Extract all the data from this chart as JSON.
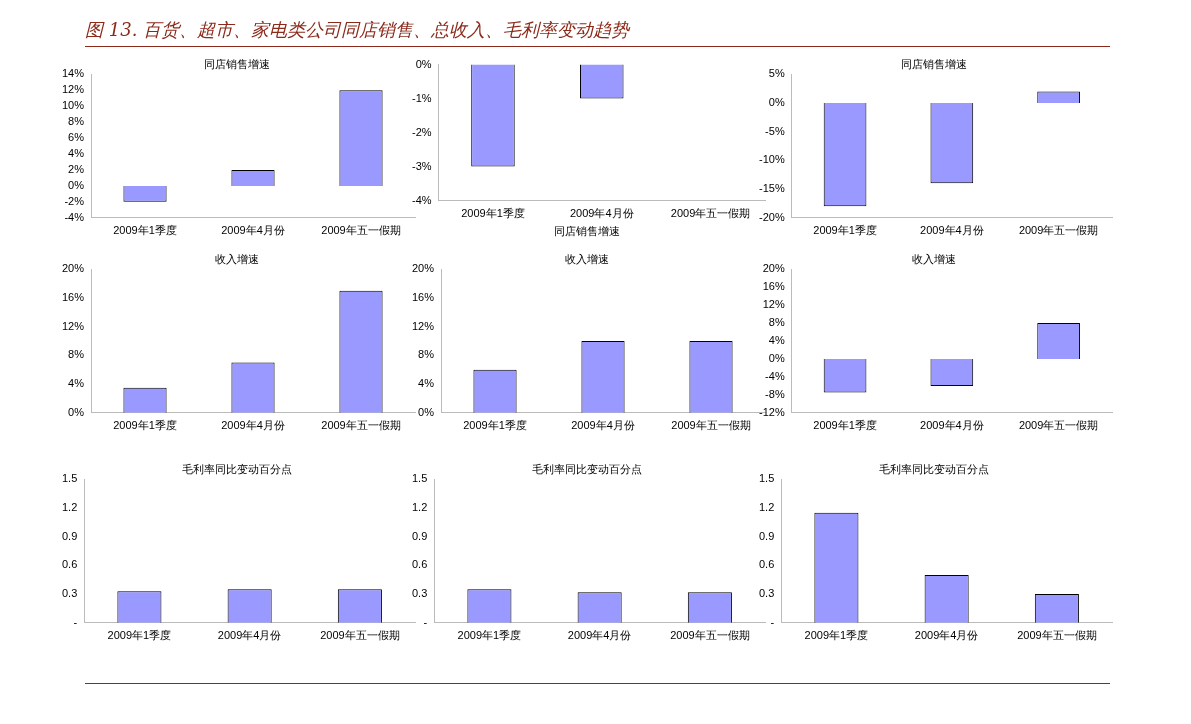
{
  "chart_data": [
    {
      "type": "bar",
      "title": "同店销售增速",
      "annotations": [
        "图 13. 百货、超市、家电类公司同店销售、总收入、毛利率变动趋势"
      ],
      "categories": [
        "2009年1季度",
        "2009年4月份",
        "2009年五一假期"
      ],
      "values": [
        -2,
        2,
        12
      ],
      "color": "#9999ff",
      "ylim": [
        -4,
        14
      ],
      "yticks": [
        {
          "value": -4,
          "label": "-4%"
        },
        {
          "value": -2,
          "label": "-2%"
        },
        {
          "value": 0,
          "label": "0%"
        },
        {
          "value": 2,
          "label": "2%"
        },
        {
          "value": 4,
          "label": "4%"
        },
        {
          "value": 6,
          "label": "6%"
        },
        {
          "value": 8,
          "label": "8%"
        },
        {
          "value": 10,
          "label": "10%"
        },
        {
          "value": 12,
          "label": "12%"
        },
        {
          "value": 14,
          "label": "14%"
        }
      ],
      "grid": false,
      "legend": false
    },
    {
      "type": "bar",
      "title": "同店销售增速",
      "categories": [
        "2009年1季度",
        "2009年4月份",
        "2009年五一假期"
      ],
      "values": [
        -3,
        -1,
        null
      ],
      "color": "#9999ff",
      "ylim": [
        -4,
        0
      ],
      "yticks": [
        {
          "value": -4,
          "label": "-4%"
        },
        {
          "value": -3,
          "label": "-3%"
        },
        {
          "value": -2,
          "label": "-2%"
        },
        {
          "value": -1,
          "label": "-1%"
        },
        {
          "value": 0,
          "label": "0%"
        }
      ],
      "grid": false,
      "legend": false
    },
    {
      "type": "bar",
      "title": "同店销售增速",
      "categories": [
        "2009年1季度",
        "2009年4月份",
        "2009年五一假期"
      ],
      "values": [
        -18,
        -14,
        2
      ],
      "color": "#9999ff",
      "ylim": [
        -20,
        5
      ],
      "yticks": [
        {
          "value": -20,
          "label": "-20%"
        },
        {
          "value": -15,
          "label": "-15%"
        },
        {
          "value": -10,
          "label": "-10%"
        },
        {
          "value": -5,
          "label": "-5%"
        },
        {
          "value": 0,
          "label": "0%"
        },
        {
          "value": 5,
          "label": "5%"
        }
      ],
      "grid": false,
      "legend": false
    },
    {
      "type": "bar",
      "title": "收入增速",
      "categories": [
        "2009年1季度",
        "2009年4月份",
        "2009年五一假期"
      ],
      "values": [
        3.5,
        7,
        17
      ],
      "color": "#9999ff",
      "ylim": [
        0,
        20
      ],
      "yticks": [
        {
          "value": 0,
          "label": "0%"
        },
        {
          "value": 4,
          "label": "4%"
        },
        {
          "value": 8,
          "label": "8%"
        },
        {
          "value": 12,
          "label": "12%"
        },
        {
          "value": 16,
          "label": "16%"
        },
        {
          "value": 20,
          "label": "20%"
        }
      ],
      "grid": false,
      "legend": false
    },
    {
      "type": "bar",
      "title": "收入增速",
      "categories": [
        "2009年1季度",
        "2009年4月份",
        "2009年五一假期"
      ],
      "values": [
        6,
        10,
        10
      ],
      "color": "#9999ff",
      "ylim": [
        0,
        20
      ],
      "yticks": [
        {
          "value": 0,
          "label": "0%"
        },
        {
          "value": 4,
          "label": "4%"
        },
        {
          "value": 8,
          "label": "8%"
        },
        {
          "value": 12,
          "label": "12%"
        },
        {
          "value": 16,
          "label": "16%"
        },
        {
          "value": 20,
          "label": "20%"
        }
      ],
      "grid": false,
      "legend": false
    },
    {
      "type": "bar",
      "title": "收入增速",
      "categories": [
        "2009年1季度",
        "2009年4月份",
        "2009年五一假期"
      ],
      "values": [
        -7.5,
        -6,
        8
      ],
      "color": "#9999ff",
      "ylim": [
        -12,
        20
      ],
      "yticks": [
        {
          "value": -12,
          "label": "-12%"
        },
        {
          "value": -8,
          "label": "-8%"
        },
        {
          "value": -4,
          "label": "-4%"
        },
        {
          "value": 0,
          "label": "0%"
        },
        {
          "value": 4,
          "label": "4%"
        },
        {
          "value": 8,
          "label": "8%"
        },
        {
          "value": 12,
          "label": "12%"
        },
        {
          "value": 16,
          "label": "16%"
        },
        {
          "value": 20,
          "label": "20%"
        }
      ],
      "grid": false,
      "legend": false
    },
    {
      "type": "bar",
      "title": "毛利率同比变动百分点",
      "categories": [
        "2009年1季度",
        "2009年4月份",
        "2009年五一假期"
      ],
      "values": [
        0.33,
        0.35,
        0.35
      ],
      "color": "#9999ff",
      "ylim": [
        0,
        1.5
      ],
      "yticks": [
        {
          "value": 0,
          "label": "-"
        },
        0.3,
        0.6,
        0.9,
        1.2,
        1.5
      ],
      "grid": false,
      "legend": false
    },
    {
      "type": "bar",
      "title": "毛利率同比变动百分点",
      "categories": [
        "2009年1季度",
        "2009年4月份",
        "2009年五一假期"
      ],
      "values": [
        0.35,
        0.32,
        0.32
      ],
      "color": "#9999ff",
      "ylim": [
        0,
        1.5
      ],
      "yticks": [
        {
          "value": 0,
          "label": "-"
        },
        0.3,
        0.6,
        0.9,
        1.2,
        1.5
      ],
      "grid": false,
      "legend": false
    },
    {
      "type": "bar",
      "title": "毛利率同比变动百分点",
      "categories": [
        "2009年1季度",
        "2009年4月份",
        "2009年五一假期"
      ],
      "values": [
        1.15,
        0.5,
        0.3
      ],
      "color": "#9999ff",
      "ylim": [
        0,
        1.5
      ],
      "yticks": [
        {
          "value": 0,
          "label": "-"
        },
        0.3,
        0.6,
        0.9,
        1.2,
        1.5
      ],
      "grid": false,
      "legend": false
    }
  ]
}
